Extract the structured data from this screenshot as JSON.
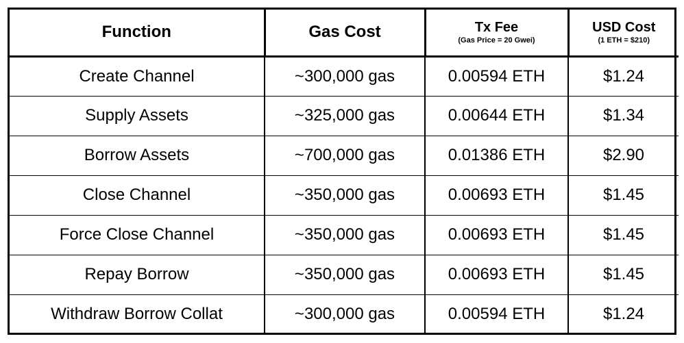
{
  "table": {
    "headers": [
      {
        "title": "Function",
        "subtitle": ""
      },
      {
        "title": "Gas Cost",
        "subtitle": ""
      },
      {
        "title": "Tx Fee",
        "subtitle": "(Gas Price = 20 Gwei)"
      },
      {
        "title": "USD Cost",
        "subtitle": "(1 ETH = $210)"
      }
    ],
    "rows": [
      {
        "function": "Create Channel",
        "gas_cost": "~300,000 gas",
        "tx_fee": "0.00594 ETH",
        "usd_cost": "$1.24"
      },
      {
        "function": "Supply Assets",
        "gas_cost": "~325,000 gas",
        "tx_fee": "0.00644 ETH",
        "usd_cost": "$1.34"
      },
      {
        "function": "Borrow Assets",
        "gas_cost": "~700,000 gas",
        "tx_fee": "0.01386 ETH",
        "usd_cost": "$2.90"
      },
      {
        "function": "Close Channel",
        "gas_cost": "~350,000 gas",
        "tx_fee": "0.00693 ETH",
        "usd_cost": "$1.45"
      },
      {
        "function": "Force Close Channel",
        "gas_cost": "~350,000 gas",
        "tx_fee": "0.00693 ETH",
        "usd_cost": "$1.45"
      },
      {
        "function": "Repay Borrow",
        "gas_cost": "~350,000 gas",
        "tx_fee": "0.00693 ETH",
        "usd_cost": "$1.45"
      },
      {
        "function": "Withdraw Borrow Collat",
        "gas_cost": "~300,000 gas",
        "tx_fee": "0.00594 ETH",
        "usd_cost": "$1.24"
      }
    ]
  }
}
